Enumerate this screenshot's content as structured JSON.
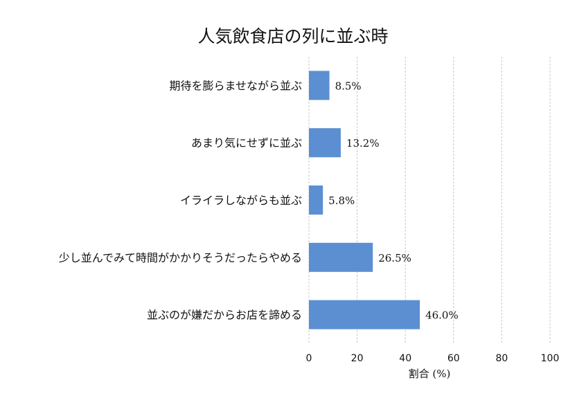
{
  "chart_data": {
    "type": "bar",
    "orientation": "horizontal",
    "title": "人気飲食店の列に並ぶ時",
    "categories": [
      "期待を膨らませながら並ぶ",
      "あまり気にせずに並ぶ",
      "イライラしながらも並ぶ",
      "少し並んでみて時間がかかりそうだったらやめる",
      "並ぶのが嫌だからお店を諦める"
    ],
    "values": [
      8.5,
      13.2,
      5.8,
      26.5,
      46.0
    ],
    "data_labels": [
      "8.5%",
      "13.2%",
      "5.8%",
      "26.5%",
      "46.0%"
    ],
    "xlabel": "割合 (%)",
    "ylabel": "",
    "xlim": [
      0,
      100
    ],
    "x_ticks": [
      0,
      20,
      40,
      60,
      80,
      100
    ],
    "x_tick_labels": [
      "0",
      "20",
      "40",
      "60",
      "80",
      "100"
    ],
    "grid": "vertical dashed",
    "bar_color": "#5b8fd1"
  }
}
